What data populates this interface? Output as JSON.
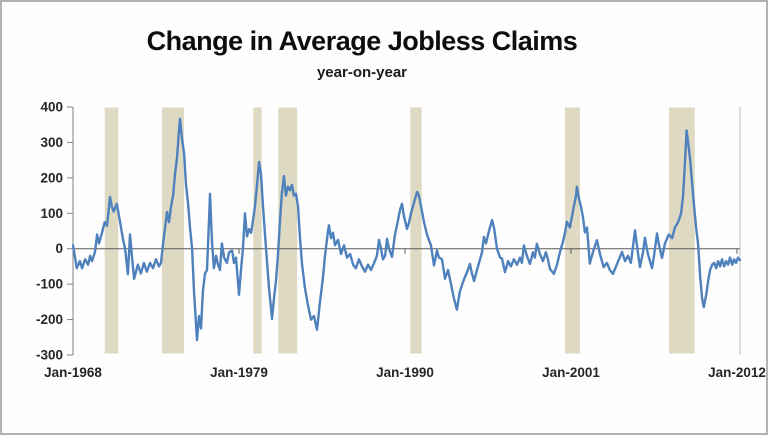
{
  "chart_data": {
    "type": "line",
    "title": "Change in Average Jobless Claims",
    "subtitle": "year-on-year",
    "xlabel": "",
    "ylabel": "",
    "x_range": [
      1968,
      2012.2
    ],
    "y_range": [
      -300,
      400
    ],
    "grid": false,
    "legend": "none",
    "y_ticks": [
      400,
      300,
      200,
      100,
      0,
      -100,
      -200,
      -300
    ],
    "x_ticks": [
      {
        "label": "Jan-1968",
        "year": 1968
      },
      {
        "label": "Jan-1979",
        "year": 1979
      },
      {
        "label": "Jan-1990",
        "year": 1990
      },
      {
        "label": "Jan-2001",
        "year": 2001
      },
      {
        "label": "Jan-2012",
        "year": 2012
      }
    ],
    "recession_bands": [
      [
        1970.1,
        1971.0
      ],
      [
        1973.9,
        1975.35
      ],
      [
        1979.95,
        1980.5
      ],
      [
        1981.6,
        1982.85
      ],
      [
        1990.35,
        1991.1
      ],
      [
        2000.6,
        2001.6
      ],
      [
        2007.5,
        2009.2
      ]
    ],
    "colors": {
      "line": "#4F81BD",
      "band": "#DDD9C3",
      "axis": "#808080",
      "zero_line": "#595959",
      "right_border": "#bfbfbf",
      "tick_text": "#262626"
    },
    "series": [
      {
        "name": "yoy-change-in-average-jobless-claims",
        "points": [
          [
            1968.0,
            10
          ],
          [
            1968.1,
            -15
          ],
          [
            1968.25,
            -55
          ],
          [
            1968.45,
            -35
          ],
          [
            1968.6,
            -55
          ],
          [
            1968.8,
            -30
          ],
          [
            1969.0,
            -45
          ],
          [
            1969.13,
            -20
          ],
          [
            1969.26,
            -35
          ],
          [
            1969.45,
            -10
          ],
          [
            1969.6,
            40
          ],
          [
            1969.72,
            15
          ],
          [
            1969.92,
            45
          ],
          [
            1970.1,
            75
          ],
          [
            1970.25,
            65
          ],
          [
            1970.45,
            146
          ],
          [
            1970.58,
            118
          ],
          [
            1970.7,
            105
          ],
          [
            1970.9,
            127
          ],
          [
            1971.1,
            80
          ],
          [
            1971.3,
            30
          ],
          [
            1971.45,
            0
          ],
          [
            1971.64,
            -72
          ],
          [
            1971.78,
            40
          ],
          [
            1971.9,
            -20
          ],
          [
            1972.05,
            -85
          ],
          [
            1972.3,
            -45
          ],
          [
            1972.5,
            -70
          ],
          [
            1972.7,
            -40
          ],
          [
            1972.9,
            -65
          ],
          [
            1973.1,
            -40
          ],
          [
            1973.3,
            -55
          ],
          [
            1973.5,
            -30
          ],
          [
            1973.7,
            -50
          ],
          [
            1973.83,
            -40
          ],
          [
            1973.96,
            10
          ],
          [
            1974.1,
            60
          ],
          [
            1974.23,
            104
          ],
          [
            1974.36,
            75
          ],
          [
            1974.5,
            120
          ],
          [
            1974.63,
            150
          ],
          [
            1974.76,
            210
          ],
          [
            1974.9,
            260
          ],
          [
            1975.02,
            330
          ],
          [
            1975.09,
            367
          ],
          [
            1975.22,
            310
          ],
          [
            1975.36,
            270
          ],
          [
            1975.49,
            180
          ],
          [
            1975.62,
            130
          ],
          [
            1975.75,
            60
          ],
          [
            1975.89,
            0
          ],
          [
            1976.02,
            -120
          ],
          [
            1976.22,
            -258
          ],
          [
            1976.35,
            -190
          ],
          [
            1976.48,
            -225
          ],
          [
            1976.61,
            -120
          ],
          [
            1976.75,
            -70
          ],
          [
            1976.88,
            -60
          ],
          [
            1977.01,
            80
          ],
          [
            1977.08,
            155
          ],
          [
            1977.21,
            20
          ],
          [
            1977.34,
            -55
          ],
          [
            1977.48,
            -20
          ],
          [
            1977.61,
            -45
          ],
          [
            1977.74,
            -60
          ],
          [
            1977.87,
            15
          ],
          [
            1978.01,
            -25
          ],
          [
            1978.2,
            -40
          ],
          [
            1978.34,
            -10
          ],
          [
            1978.54,
            -5
          ],
          [
            1978.67,
            -40
          ],
          [
            1978.8,
            -25
          ],
          [
            1979.0,
            -130
          ],
          [
            1979.13,
            -60
          ],
          [
            1979.26,
            0
          ],
          [
            1979.4,
            100
          ],
          [
            1979.53,
            35
          ],
          [
            1979.66,
            55
          ],
          [
            1979.8,
            45
          ],
          [
            1979.93,
            80
          ],
          [
            1980.06,
            120
          ],
          [
            1980.19,
            180
          ],
          [
            1980.33,
            245
          ],
          [
            1980.46,
            210
          ],
          [
            1980.59,
            120
          ],
          [
            1980.72,
            40
          ],
          [
            1980.86,
            -40
          ],
          [
            1980.99,
            -110
          ],
          [
            1981.19,
            -198
          ],
          [
            1981.32,
            -140
          ],
          [
            1981.45,
            -90
          ],
          [
            1981.58,
            -20
          ],
          [
            1981.72,
            80
          ],
          [
            1981.85,
            160
          ],
          [
            1981.98,
            205
          ],
          [
            1982.11,
            150
          ],
          [
            1982.25,
            175
          ],
          [
            1982.38,
            165
          ],
          [
            1982.51,
            180
          ],
          [
            1982.64,
            150
          ],
          [
            1982.78,
            155
          ],
          [
            1982.91,
            120
          ],
          [
            1983.04,
            30
          ],
          [
            1983.17,
            -40
          ],
          [
            1983.37,
            -110
          ],
          [
            1983.57,
            -160
          ],
          [
            1983.77,
            -200
          ],
          [
            1983.97,
            -190
          ],
          [
            1984.17,
            -229
          ],
          [
            1984.37,
            -150
          ],
          [
            1984.57,
            -80
          ],
          [
            1984.7,
            -20
          ],
          [
            1984.9,
            50
          ],
          [
            1984.96,
            66
          ],
          [
            1985.1,
            30
          ],
          [
            1985.23,
            45
          ],
          [
            1985.36,
            10
          ],
          [
            1985.56,
            25
          ],
          [
            1985.76,
            -15
          ],
          [
            1985.96,
            10
          ],
          [
            1986.16,
            -25
          ],
          [
            1986.36,
            -15
          ],
          [
            1986.56,
            -45
          ],
          [
            1986.75,
            -55
          ],
          [
            1986.95,
            -30
          ],
          [
            1987.15,
            -50
          ],
          [
            1987.35,
            -65
          ],
          [
            1987.55,
            -45
          ],
          [
            1987.75,
            -60
          ],
          [
            1987.95,
            -40
          ],
          [
            1988.14,
            -20
          ],
          [
            1988.28,
            25
          ],
          [
            1988.41,
            0
          ],
          [
            1988.54,
            -30
          ],
          [
            1988.68,
            -20
          ],
          [
            1988.81,
            28
          ],
          [
            1988.94,
            0
          ],
          [
            1989.14,
            -23
          ],
          [
            1989.34,
            40
          ],
          [
            1989.54,
            80
          ],
          [
            1989.67,
            110
          ],
          [
            1989.8,
            127
          ],
          [
            1989.94,
            90
          ],
          [
            1990.13,
            56
          ],
          [
            1990.27,
            75
          ],
          [
            1990.4,
            100
          ],
          [
            1990.53,
            120
          ],
          [
            1990.66,
            140
          ],
          [
            1990.8,
            160
          ],
          [
            1990.93,
            150
          ],
          [
            1991.06,
            120
          ],
          [
            1991.26,
            75
          ],
          [
            1991.46,
            40
          ],
          [
            1991.59,
            24
          ],
          [
            1991.72,
            10
          ],
          [
            1991.92,
            -47
          ],
          [
            1992.12,
            -5
          ],
          [
            1992.25,
            -25
          ],
          [
            1992.45,
            -30
          ],
          [
            1992.65,
            -85
          ],
          [
            1992.85,
            -60
          ],
          [
            1993.05,
            -100
          ],
          [
            1993.24,
            -140
          ],
          [
            1993.44,
            -172
          ],
          [
            1993.64,
            -120
          ],
          [
            1993.84,
            -95
          ],
          [
            1993.97,
            -80
          ],
          [
            1994.17,
            -60
          ],
          [
            1994.3,
            -43
          ],
          [
            1994.44,
            -70
          ],
          [
            1994.57,
            -91
          ],
          [
            1994.77,
            -60
          ],
          [
            1994.97,
            -30
          ],
          [
            1995.1,
            -10
          ],
          [
            1995.23,
            33
          ],
          [
            1995.37,
            15
          ],
          [
            1995.57,
            50
          ],
          [
            1995.77,
            81
          ],
          [
            1995.9,
            60
          ],
          [
            1996.1,
            0
          ],
          [
            1996.3,
            -25
          ],
          [
            1996.43,
            -28
          ],
          [
            1996.63,
            -66
          ],
          [
            1996.83,
            -35
          ],
          [
            1997.02,
            -50
          ],
          [
            1997.22,
            -30
          ],
          [
            1997.42,
            -45
          ],
          [
            1997.62,
            -25
          ],
          [
            1997.75,
            -40
          ],
          [
            1997.88,
            9
          ],
          [
            1998.08,
            -20
          ],
          [
            1998.28,
            -43
          ],
          [
            1998.48,
            -10
          ],
          [
            1998.61,
            -25
          ],
          [
            1998.74,
            14
          ],
          [
            1998.94,
            -15
          ],
          [
            1999.14,
            -35
          ],
          [
            1999.34,
            -10
          ],
          [
            1999.47,
            -30
          ],
          [
            1999.6,
            -57
          ],
          [
            1999.87,
            -71
          ],
          [
            2000.07,
            -45
          ],
          [
            2000.27,
            -9
          ],
          [
            2000.47,
            20
          ],
          [
            2000.6,
            45
          ],
          [
            2000.73,
            76
          ],
          [
            2000.93,
            60
          ],
          [
            2001.06,
            90
          ],
          [
            2001.19,
            120
          ],
          [
            2001.33,
            150
          ],
          [
            2001.39,
            175
          ],
          [
            2001.53,
            140
          ],
          [
            2001.66,
            120
          ],
          [
            2001.79,
            90
          ],
          [
            2001.92,
            46
          ],
          [
            2002.06,
            60
          ],
          [
            2002.25,
            -42
          ],
          [
            2002.45,
            -10
          ],
          [
            2002.72,
            24
          ],
          [
            2002.92,
            -15
          ],
          [
            2003.16,
            -52
          ],
          [
            2003.38,
            -40
          ],
          [
            2003.58,
            -60
          ],
          [
            2003.78,
            -71
          ],
          [
            2003.98,
            -50
          ],
          [
            2004.18,
            -30
          ],
          [
            2004.38,
            -9
          ],
          [
            2004.58,
            -35
          ],
          [
            2004.78,
            -20
          ],
          [
            2004.97,
            -40
          ],
          [
            2005.24,
            52
          ],
          [
            2005.37,
            10
          ],
          [
            2005.57,
            -52
          ],
          [
            2005.77,
            -10
          ],
          [
            2005.9,
            31
          ],
          [
            2006.1,
            -15
          ],
          [
            2006.37,
            -55
          ],
          [
            2006.5,
            -20
          ],
          [
            2006.7,
            43
          ],
          [
            2006.83,
            10
          ],
          [
            2007.03,
            -26
          ],
          [
            2007.23,
            15
          ],
          [
            2007.48,
            40
          ],
          [
            2007.7,
            30
          ],
          [
            2007.9,
            61
          ],
          [
            2008.1,
            75
          ],
          [
            2008.3,
            100
          ],
          [
            2008.43,
            150
          ],
          [
            2008.56,
            250
          ],
          [
            2008.66,
            334
          ],
          [
            2008.76,
            300
          ],
          [
            2008.9,
            250
          ],
          [
            2009.03,
            180
          ],
          [
            2009.16,
            120
          ],
          [
            2009.29,
            60
          ],
          [
            2009.43,
            10
          ],
          [
            2009.56,
            -80
          ],
          [
            2009.69,
            -140
          ],
          [
            2009.8,
            -165
          ],
          [
            2009.96,
            -130
          ],
          [
            2010.09,
            -90
          ],
          [
            2010.22,
            -60
          ],
          [
            2010.35,
            -45
          ],
          [
            2010.49,
            -40
          ],
          [
            2010.62,
            -55
          ],
          [
            2010.75,
            -35
          ],
          [
            2010.88,
            -50
          ],
          [
            2011.01,
            -30
          ],
          [
            2011.15,
            -50
          ],
          [
            2011.28,
            -35
          ],
          [
            2011.41,
            -45
          ],
          [
            2011.54,
            -25
          ],
          [
            2011.68,
            -45
          ],
          [
            2011.81,
            -30
          ],
          [
            2011.94,
            -40
          ],
          [
            2012.07,
            -25
          ],
          [
            2012.2,
            -32
          ]
        ]
      }
    ]
  }
}
